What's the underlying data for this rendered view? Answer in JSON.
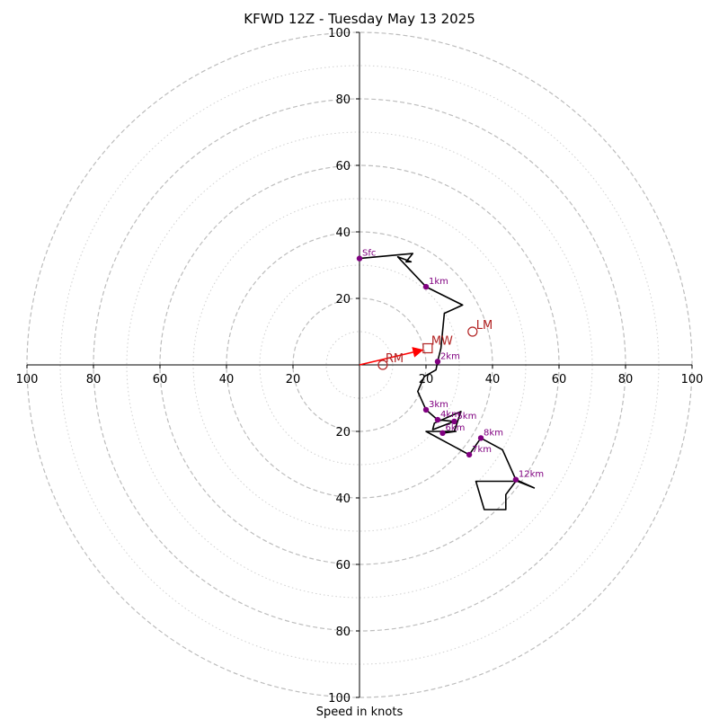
{
  "chart_data": {
    "type": "hodograph",
    "title": "KFWD 12Z - Tuesday May 13 2025",
    "xlabel": "Speed in knots",
    "range": [
      -100,
      100
    ],
    "ring_major_step": 20,
    "ring_minor_step": 10,
    "x_ticks": [
      "100",
      "80",
      "60",
      "40",
      "20",
      "20",
      "40",
      "60",
      "80",
      "100"
    ],
    "x_tick_values": [
      -100,
      -80,
      -60,
      -40,
      -20,
      20,
      40,
      60,
      80,
      100
    ],
    "y_ticks": [
      "100",
      "80",
      "60",
      "40",
      "20",
      "20",
      "40",
      "60",
      "80",
      "100"
    ],
    "y_tick_values": [
      100,
      80,
      60,
      40,
      20,
      -20,
      -40,
      -60,
      -80,
      -100
    ],
    "colors": {
      "trace": "#000000",
      "height_marker": "#800080",
      "storm_motion": "#b22222",
      "mean_wind_arrow": "#ff0000",
      "ring_major": "#bdbdbd",
      "ring_minor": "#d0d0d0"
    },
    "trace": [
      [
        0,
        32
      ],
      [
        16,
        33.5
      ],
      [
        14,
        31
      ],
      [
        15.5,
        31
      ],
      [
        11.5,
        32.5
      ],
      [
        20,
        23.5
      ],
      [
        31,
        18
      ],
      [
        25.5,
        15.5
      ],
      [
        24.5,
        5
      ],
      [
        23.5,
        1
      ],
      [
        23,
        -1.5
      ],
      [
        19.5,
        -3.5
      ],
      [
        17.5,
        -8
      ],
      [
        20,
        -13.5
      ],
      [
        23.5,
        -16.5
      ],
      [
        28.5,
        -17
      ],
      [
        22,
        -19.5
      ],
      [
        22.5,
        -17.5
      ],
      [
        30.5,
        -14
      ],
      [
        28.5,
        -20
      ],
      [
        25,
        -20.5
      ],
      [
        29,
        -20
      ],
      [
        20,
        -20
      ],
      [
        33,
        -27
      ],
      [
        36.5,
        -22
      ],
      [
        43,
        -25.5
      ],
      [
        47,
        -34.5
      ],
      [
        52.5,
        -37
      ],
      [
        47.5,
        -35
      ],
      [
        35,
        -35
      ],
      [
        37.5,
        -43.5
      ],
      [
        44,
        -43.5
      ],
      [
        44,
        -39
      ],
      [
        47,
        -35
      ]
    ],
    "height_markers": [
      {
        "label": "Sfc",
        "u": 0,
        "v": 32
      },
      {
        "label": "1km",
        "u": 20,
        "v": 23.5
      },
      {
        "label": "2km",
        "u": 23.5,
        "v": 1
      },
      {
        "label": "3km",
        "u": 20,
        "v": -13.5
      },
      {
        "label": "4km",
        "u": 23.5,
        "v": -16.5
      },
      {
        "label": "5km",
        "u": 28.5,
        "v": -17
      },
      {
        "label": "6km",
        "u": 25,
        "v": -20.5
      },
      {
        "label": "7km",
        "u": 33,
        "v": -27
      },
      {
        "label": "8km",
        "u": 36.5,
        "v": -22
      },
      {
        "label": "12km",
        "u": 47,
        "v": -34.5
      }
    ],
    "storm_motion": {
      "RM": {
        "label": "RM",
        "u": 7,
        "v": 0
      },
      "LM": {
        "label": "LM",
        "u": 34,
        "v": 10
      },
      "MW": {
        "label": "MW",
        "u": 20.5,
        "v": 5
      }
    }
  }
}
